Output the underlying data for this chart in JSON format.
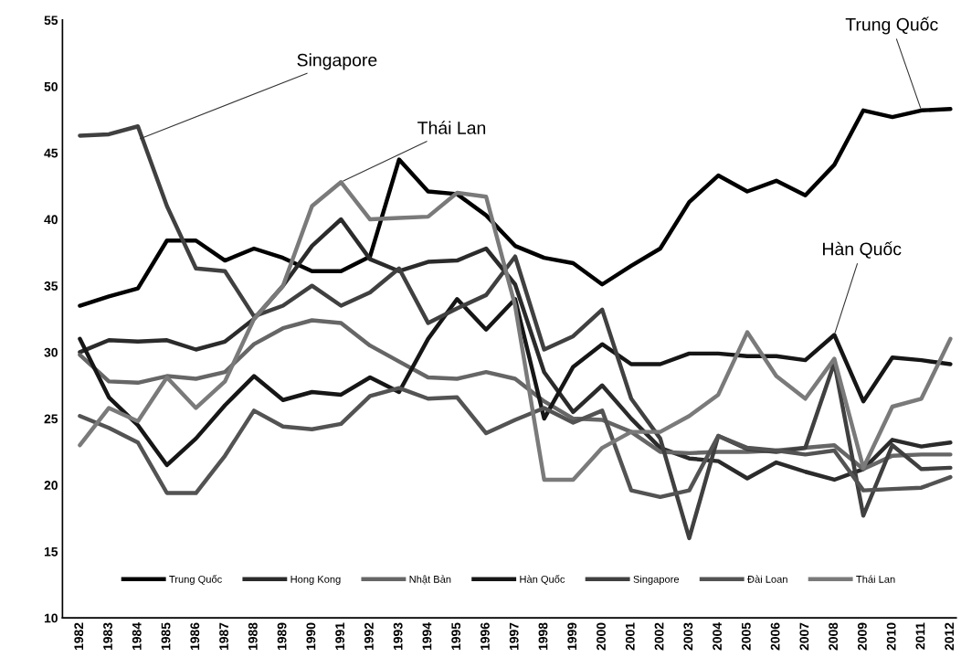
{
  "chart_data": {
    "type": "line",
    "categories": [
      "1982",
      "1983",
      "1984",
      "1985",
      "1986",
      "1987",
      "1988",
      "1989",
      "1990",
      "1991",
      "1992",
      "1993",
      "1994",
      "1995",
      "1996",
      "1997",
      "1998",
      "1999",
      "2000",
      "2001",
      "2002",
      "2003",
      "2004",
      "2005",
      "2006",
      "2007",
      "2008",
      "2009",
      "2010",
      "2011",
      "2012"
    ],
    "series": [
      {
        "name": "Trung Quốc",
        "color": "#000000",
        "values": [
          33.5,
          34.2,
          34.8,
          38.4,
          38.4,
          36.9,
          37.8,
          37.1,
          36.1,
          36.1,
          37.2,
          44.5,
          42.1,
          41.9,
          40.3,
          38.0,
          37.1,
          36.7,
          35.1,
          36.5,
          37.8,
          41.3,
          43.3,
          42.1,
          42.9,
          41.8,
          44.1,
          48.2,
          47.7,
          48.2,
          48.3
        ]
      },
      {
        "name": "Hong Kong",
        "color": "#2b2b2b",
        "values": [
          30.0,
          30.9,
          30.8,
          30.9,
          30.2,
          30.8,
          32.5,
          35.0,
          38.0,
          40.0,
          37.0,
          36.1,
          36.8,
          36.9,
          37.8,
          35.1,
          28.5,
          25.5,
          27.5,
          25.0,
          22.8,
          22.0,
          21.8,
          20.5,
          21.7,
          21.0,
          20.4,
          21.2,
          23.4,
          22.9,
          23.2
        ]
      },
      {
        "name": "Nhật Bản",
        "color": "#666666",
        "values": [
          29.8,
          27.8,
          27.7,
          28.2,
          28.0,
          28.5,
          30.6,
          31.8,
          32.4,
          32.2,
          30.5,
          29.3,
          28.1,
          28.0,
          28.5,
          28.0,
          26.3,
          25.0,
          24.9,
          24.0,
          22.5,
          22.4,
          22.5,
          22.5,
          22.6,
          22.8,
          23.0,
          21.2,
          22.2,
          22.3,
          22.3
        ]
      },
      {
        "name": "Hàn Quốc",
        "color": "#161616",
        "values": [
          31.0,
          26.6,
          24.5,
          21.5,
          23.5,
          26.0,
          28.2,
          26.4,
          27.0,
          26.8,
          28.1,
          27.0,
          31.0,
          34.0,
          31.7,
          34.0,
          25.0,
          28.9,
          30.6,
          29.1,
          29.1,
          29.9,
          29.9,
          29.7,
          29.7,
          29.4,
          31.3,
          26.3,
          29.6,
          29.4,
          29.1
        ]
      },
      {
        "name": "Singapore",
        "color": "#404040",
        "values": [
          46.3,
          46.4,
          47.0,
          41.0,
          36.3,
          36.1,
          32.7,
          33.5,
          35.0,
          33.5,
          34.5,
          36.3,
          32.2,
          33.3,
          34.3,
          37.2,
          30.2,
          31.2,
          33.2,
          26.5,
          23.5,
          16.0,
          23.7,
          22.7,
          22.5,
          22.8,
          29.2,
          17.7,
          23.0,
          21.2,
          21.3
        ]
      },
      {
        "name": "Đài Loan",
        "color": "#535353",
        "values": [
          25.2,
          24.3,
          23.2,
          19.4,
          19.4,
          22.2,
          25.6,
          24.4,
          24.2,
          24.6,
          26.7,
          27.3,
          26.5,
          26.6,
          23.9,
          24.9,
          25.8,
          24.7,
          25.6,
          19.6,
          19.1,
          19.6,
          23.7,
          22.8,
          22.6,
          22.3,
          22.6,
          19.6,
          19.7,
          19.8,
          20.6
        ]
      },
      {
        "name": "Thái Lan",
        "color": "#7a7a7a",
        "values": [
          23.0,
          25.8,
          24.8,
          28.1,
          25.8,
          27.8,
          32.5,
          35.0,
          41.0,
          42.8,
          40.0,
          40.1,
          40.2,
          42.0,
          41.7,
          33.5,
          20.4,
          20.4,
          22.8,
          24.0,
          24.0,
          25.2,
          26.8,
          31.5,
          28.2,
          26.5,
          29.5,
          21.3,
          25.9,
          26.5,
          31.0
        ]
      }
    ],
    "annotations": [
      {
        "text": "Singapore",
        "x": "1984",
        "y": 46.0
      },
      {
        "text": "Thái Lan",
        "x": "1991",
        "y": 42.8
      },
      {
        "text": "Trung Quốc",
        "x": "2011",
        "y": 48.2
      },
      {
        "text": "Hàn Quốc",
        "x": "2008",
        "y": 31.3
      }
    ],
    "ylim": [
      10,
      55
    ],
    "yticks": [
      10,
      15,
      20,
      25,
      30,
      35,
      40,
      45,
      50,
      55
    ],
    "grid": false,
    "legend": "bottom",
    "marker": "none",
    "line_style": "solid"
  }
}
